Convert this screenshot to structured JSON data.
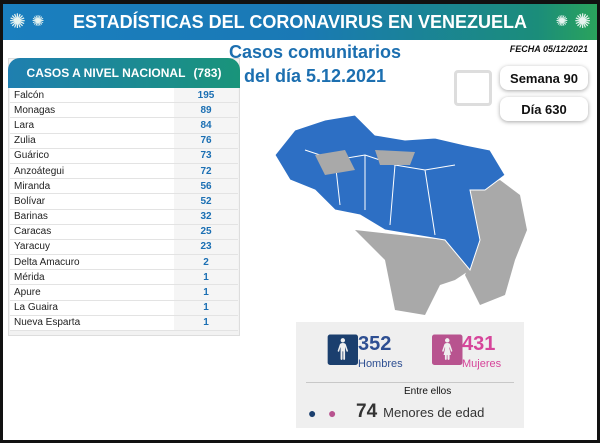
{
  "header": {
    "title": "ESTADÍSTICAS DEL CORONAVIRUS EN VENEZUELA",
    "subtitle_line1": "Casos comunitarios",
    "subtitle_line2": "del día 5.12.2021",
    "date": "FECHA 05/12/2021"
  },
  "national": {
    "label": "CASOS A NIVEL NACIONAL",
    "total": "(783)"
  },
  "states": [
    {
      "name": "Falcón",
      "cases": "195"
    },
    {
      "name": "Monagas",
      "cases": "89"
    },
    {
      "name": "Lara",
      "cases": "84"
    },
    {
      "name": "Zulia",
      "cases": "76"
    },
    {
      "name": "Guárico",
      "cases": "73"
    },
    {
      "name": "Anzoátegui",
      "cases": "72"
    },
    {
      "name": "Miranda",
      "cases": "56"
    },
    {
      "name": "Bolívar",
      "cases": "52"
    },
    {
      "name": "Barinas",
      "cases": "32"
    },
    {
      "name": "Caracas",
      "cases": "25"
    },
    {
      "name": "Yaracuy",
      "cases": "23"
    },
    {
      "name": "Delta Amacuro",
      "cases": "2"
    },
    {
      "name": "Mérida",
      "cases": "1"
    },
    {
      "name": "Apure",
      "cases": "1"
    },
    {
      "name": "La Guaira",
      "cases": "1"
    },
    {
      "name": "Nueva Esparta",
      "cases": "1"
    }
  ],
  "week": "Semana 90",
  "day": "Día 630",
  "gender": {
    "men": "352",
    "men_label": "Hombres",
    "women": "431",
    "women_label": "Mujeres",
    "among": "Entre ellos",
    "minors": "74",
    "minors_label": "Menores de edad"
  },
  "colors": {
    "blue": "#1c6fb0",
    "pink": "#d6459a",
    "navy": "#1b3f6e",
    "map_blue": "#2d6fc4",
    "map_gray": "#a9a9a9"
  }
}
